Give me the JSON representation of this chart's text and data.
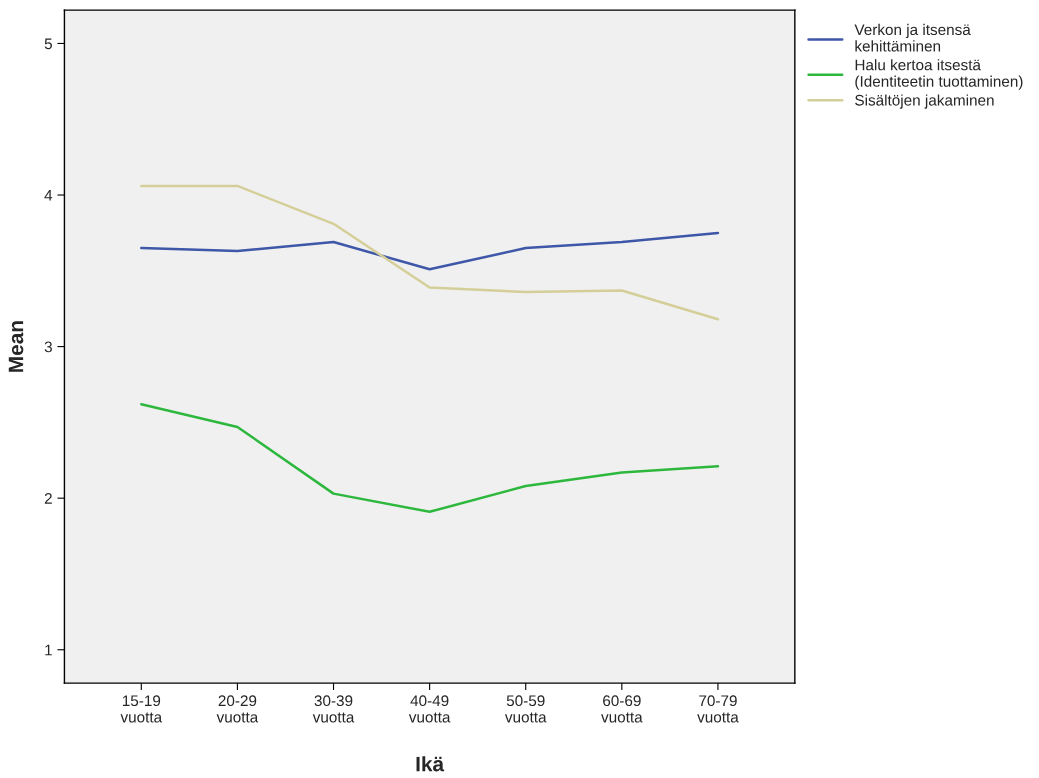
{
  "chart_data": {
    "type": "line",
    "xlabel": "Ikä",
    "ylabel": "Mean",
    "categories": [
      "15-19\nvuotta",
      "20-29\nvuotta",
      "30-39\nvuotta",
      "40-49\nvuotta",
      "50-59\nvuotta",
      "60-69\nvuotta",
      "70-79\nvuotta"
    ],
    "series": [
      {
        "name": "Verkon ja itsensä\nkehittäminen",
        "color": "#3e57a8",
        "values": [
          3.65,
          3.63,
          3.69,
          3.51,
          3.65,
          3.69,
          3.75
        ]
      },
      {
        "name": "Halu kertoa itsestä\n(Identiteetin tuottaminen)",
        "color": "#2db83d",
        "values": [
          2.62,
          2.47,
          2.03,
          1.91,
          2.08,
          2.17,
          2.21
        ]
      },
      {
        "name": "Sisältöjen jakaminen",
        "color": "#d4cf98",
        "values": [
          4.06,
          4.06,
          3.81,
          3.39,
          3.36,
          3.37,
          3.18
        ]
      }
    ],
    "ylim": [
      0.78,
      5.22
    ],
    "yticks": [
      1,
      2,
      3,
      4,
      5
    ],
    "grid": false,
    "legend": "top right",
    "marker": "none",
    "line_style": "solid"
  }
}
